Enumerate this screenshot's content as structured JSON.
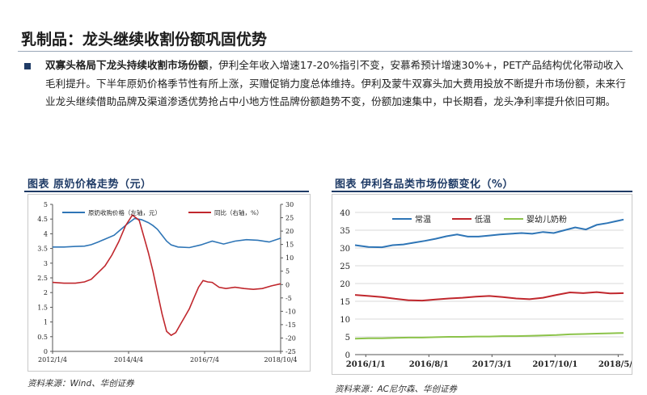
{
  "page": {
    "title": "乳制品：龙头继续收割份额巩固优势",
    "para_bold": "双寡头格局下龙头持续收割市场份额",
    "para_rest": "，伊利全年收入增速17-20%指引不变，安慕希预计增速30%+，PET产品结构优化带动收入毛利提升。下半年原奶价格季节性有所上涨，买赠促销力度总体维持。伊利及蒙牛双寡头加大费用投放不断提升市场份额，未来行业龙头继续借助品牌及渠道渗透优势抢占中小地方性品牌份额趋势不变，份额加速集中，中长期看，龙头净利率提升依旧可期。"
  },
  "figures": {
    "left": {
      "title": "图表  原奶价格走势（元）",
      "source": "资料来源：Wind、华创证券"
    },
    "right": {
      "title": "图表  伊利各品类市场份额变化（%）",
      "source": "资料来源：AC尼尔森、华创证券"
    }
  },
  "chart_data": [
    {
      "type": "line",
      "x_tick_labels": [
        "2012/1/4",
        "2014/4/4",
        "2016/7/4",
        "2018/10/4"
      ],
      "y_left_ticks": [
        "0",
        "0.5",
        "1",
        "1.5",
        "2",
        "2.5",
        "3",
        "3.5",
        "4",
        "4.5",
        "5"
      ],
      "y_right_ticks": [
        "30",
        "25",
        "20",
        "15",
        "10",
        "5",
        "0",
        "-5",
        "-10",
        "-15",
        "-20",
        "-25"
      ],
      "ylim_left": [
        0,
        5
      ],
      "ylim_right": [
        -25,
        30
      ],
      "grid": false,
      "legend": "top",
      "colors": {
        "price": "#2e75b6",
        "yoy": "#c0272d"
      },
      "series": [
        {
          "name": "原奶收购价格（左轴，元）",
          "axis": "left",
          "points": [
            [
              0,
              3.55
            ],
            [
              0.05,
              3.55
            ],
            [
              0.1,
              3.57
            ],
            [
              0.14,
              3.58
            ],
            [
              0.17,
              3.63
            ],
            [
              0.2,
              3.72
            ],
            [
              0.23,
              3.82
            ],
            [
              0.27,
              3.95
            ],
            [
              0.3,
              4.15
            ],
            [
              0.33,
              4.35
            ],
            [
              0.36,
              4.52
            ],
            [
              0.39,
              4.48
            ],
            [
              0.42,
              4.38
            ],
            [
              0.44,
              4.28
            ],
            [
              0.46,
              4.15
            ],
            [
              0.48,
              3.95
            ],
            [
              0.5,
              3.75
            ],
            [
              0.52,
              3.62
            ],
            [
              0.55,
              3.55
            ],
            [
              0.6,
              3.53
            ],
            [
              0.65,
              3.62
            ],
            [
              0.7,
              3.75
            ],
            [
              0.75,
              3.65
            ],
            [
              0.8,
              3.75
            ],
            [
              0.85,
              3.8
            ],
            [
              0.9,
              3.78
            ],
            [
              0.95,
              3.72
            ],
            [
              1.0,
              3.85
            ]
          ]
        },
        {
          "name": "同比（右轴，%）",
          "axis": "right",
          "points": [
            [
              0,
              0.8
            ],
            [
              0.05,
              0.5
            ],
            [
              0.1,
              0.5
            ],
            [
              0.14,
              1.0
            ],
            [
              0.17,
              2.0
            ],
            [
              0.2,
              4.5
            ],
            [
              0.23,
              7.0
            ],
            [
              0.26,
              11.0
            ],
            [
              0.29,
              16.0
            ],
            [
              0.32,
              22.0
            ],
            [
              0.35,
              26.0
            ],
            [
              0.38,
              24.0
            ],
            [
              0.4,
              18.0
            ],
            [
              0.42,
              12.0
            ],
            [
              0.44,
              5.0
            ],
            [
              0.46,
              -3.0
            ],
            [
              0.48,
              -11.0
            ],
            [
              0.5,
              -17.5
            ],
            [
              0.52,
              -19.0
            ],
            [
              0.54,
              -18.0
            ],
            [
              0.56,
              -15.0
            ],
            [
              0.58,
              -12.0
            ],
            [
              0.6,
              -9.0
            ],
            [
              0.62,
              -5.0
            ],
            [
              0.64,
              -1.0
            ],
            [
              0.66,
              1.5
            ],
            [
              0.68,
              1.0
            ],
            [
              0.7,
              0.8
            ],
            [
              0.73,
              -1.0
            ],
            [
              0.76,
              -1.5
            ],
            [
              0.8,
              -1.0
            ],
            [
              0.84,
              -1.5
            ],
            [
              0.88,
              -1.8
            ],
            [
              0.92,
              -1.5
            ],
            [
              0.96,
              -0.5
            ],
            [
              1.0,
              0.3
            ]
          ]
        }
      ]
    },
    {
      "type": "line",
      "x_tick_labels": [
        "2016/1/1",
        "2016/8/1",
        "2017/3/1",
        "2017/10/1",
        "2018/5/1"
      ],
      "y_ticks": [
        "0",
        "5",
        "10",
        "15",
        "20",
        "25",
        "30",
        "35",
        "40"
      ],
      "ylim": [
        0,
        40
      ],
      "grid": true,
      "legend": "top",
      "series": [
        {
          "name": "常温",
          "color": "#2e75b6",
          "points": [
            [
              0,
              30.8
            ],
            [
              0.05,
              30.3
            ],
            [
              0.1,
              30.2
            ],
            [
              0.14,
              30.8
            ],
            [
              0.18,
              31.0
            ],
            [
              0.22,
              31.5
            ],
            [
              0.26,
              32.0
            ],
            [
              0.3,
              32.6
            ],
            [
              0.34,
              33.3
            ],
            [
              0.38,
              33.8
            ],
            [
              0.42,
              33.2
            ],
            [
              0.46,
              33.2
            ],
            [
              0.5,
              33.5
            ],
            [
              0.54,
              33.8
            ],
            [
              0.58,
              34.0
            ],
            [
              0.62,
              34.2
            ],
            [
              0.66,
              34.0
            ],
            [
              0.7,
              34.5
            ],
            [
              0.74,
              34.2
            ],
            [
              0.78,
              35.0
            ],
            [
              0.82,
              35.8
            ],
            [
              0.86,
              35.2
            ],
            [
              0.9,
              36.5
            ],
            [
              0.94,
              37.0
            ],
            [
              1.0,
              38.0
            ]
          ]
        },
        {
          "name": "低温",
          "color": "#c0272d",
          "points": [
            [
              0,
              16.8
            ],
            [
              0.05,
              16.5
            ],
            [
              0.1,
              16.2
            ],
            [
              0.15,
              15.7
            ],
            [
              0.2,
              15.3
            ],
            [
              0.25,
              15.2
            ],
            [
              0.3,
              15.5
            ],
            [
              0.35,
              15.8
            ],
            [
              0.4,
              16.0
            ],
            [
              0.45,
              16.3
            ],
            [
              0.5,
              16.5
            ],
            [
              0.55,
              16.2
            ],
            [
              0.6,
              15.8
            ],
            [
              0.65,
              15.6
            ],
            [
              0.7,
              16.0
            ],
            [
              0.75,
              16.8
            ],
            [
              0.8,
              17.5
            ],
            [
              0.85,
              17.3
            ],
            [
              0.9,
              17.6
            ],
            [
              0.95,
              17.2
            ],
            [
              1.0,
              17.3
            ]
          ]
        },
        {
          "name": "婴幼儿奶粉",
          "color": "#8cc34a",
          "points": [
            [
              0,
              4.5
            ],
            [
              0.05,
              4.6
            ],
            [
              0.1,
              4.6
            ],
            [
              0.15,
              4.7
            ],
            [
              0.2,
              4.8
            ],
            [
              0.25,
              4.8
            ],
            [
              0.3,
              4.9
            ],
            [
              0.35,
              5.0
            ],
            [
              0.4,
              5.0
            ],
            [
              0.45,
              5.1
            ],
            [
              0.5,
              5.1
            ],
            [
              0.55,
              5.2
            ],
            [
              0.6,
              5.2
            ],
            [
              0.65,
              5.3
            ],
            [
              0.7,
              5.4
            ],
            [
              0.75,
              5.5
            ],
            [
              0.8,
              5.7
            ],
            [
              0.85,
              5.8
            ],
            [
              0.9,
              5.9
            ],
            [
              0.95,
              6.0
            ],
            [
              1.0,
              6.1
            ]
          ]
        }
      ]
    }
  ]
}
